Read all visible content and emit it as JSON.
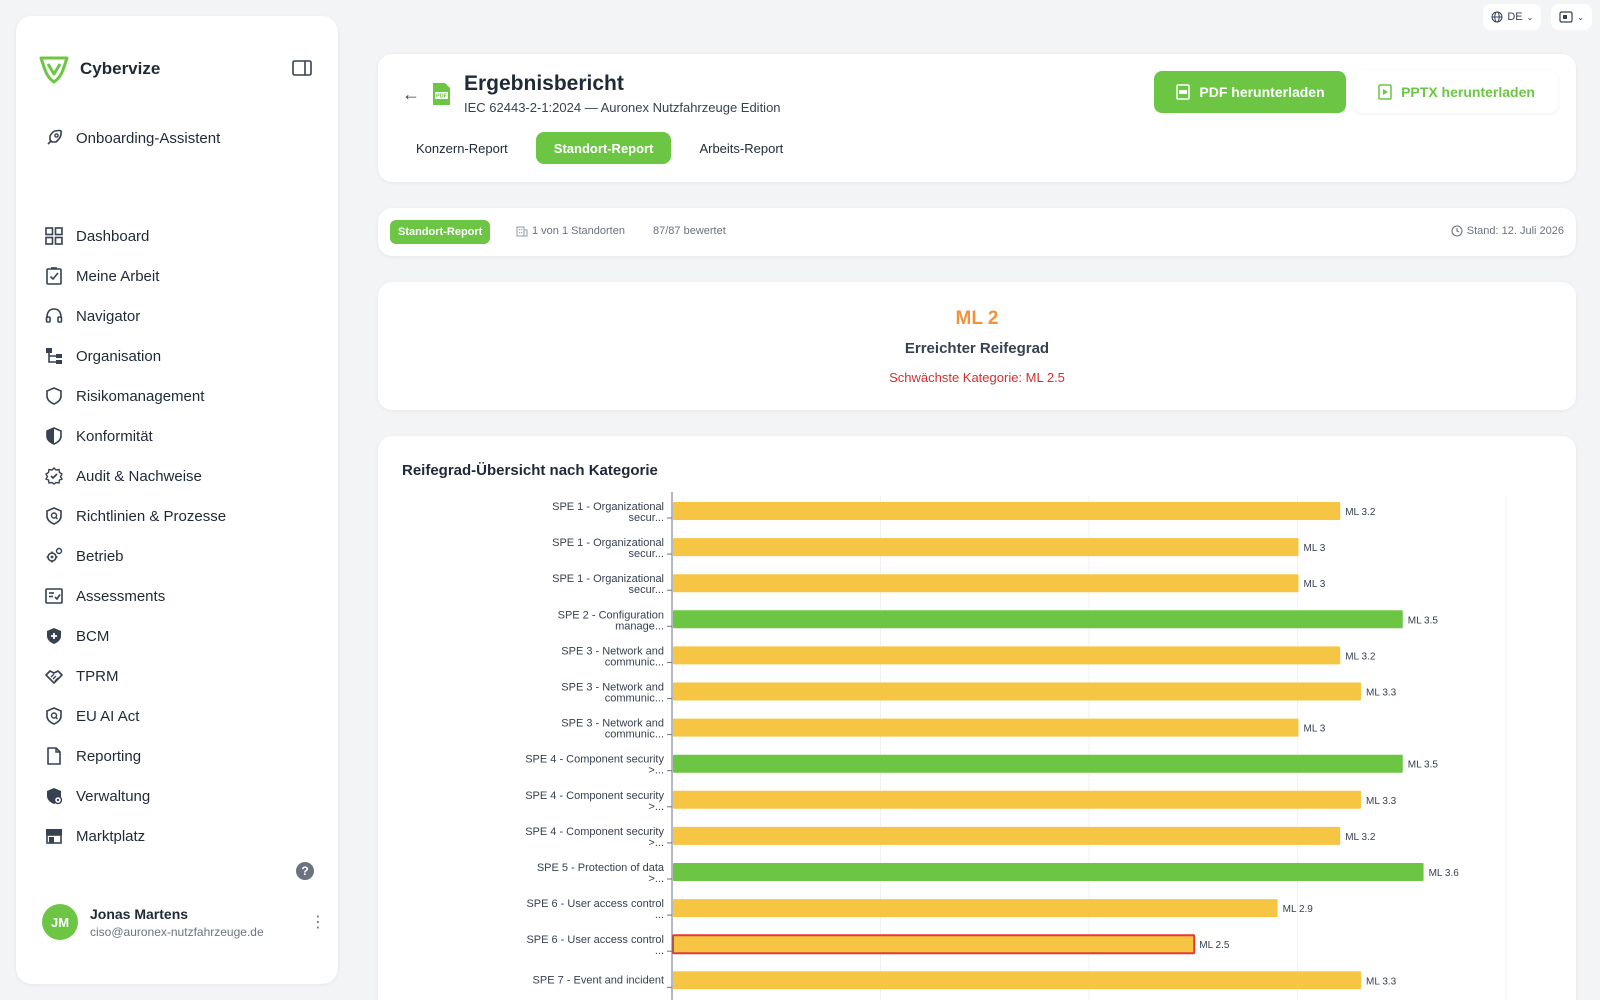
{
  "top": {
    "lang": "DE"
  },
  "sidebar": {
    "brand": "Cybervize",
    "onboarding": "Onboarding-Assistent",
    "items": [
      {
        "label": "Dashboard",
        "icon": "grid-icon"
      },
      {
        "label": "Meine Arbeit",
        "icon": "checkbox-icon"
      },
      {
        "label": "Navigator",
        "icon": "headset-icon"
      },
      {
        "label": "Organisation",
        "icon": "org-chart-icon"
      },
      {
        "label": "Risikomanagement",
        "icon": "shield-icon"
      },
      {
        "label": "Konformität",
        "icon": "shield-half-icon"
      },
      {
        "label": "Audit & Nachweise",
        "icon": "badge-check-icon"
      },
      {
        "label": "Richtlinien & Prozesse",
        "icon": "shield-search-icon"
      },
      {
        "label": "Betrieb",
        "icon": "gears-icon"
      },
      {
        "label": "Assessments",
        "icon": "checklist-icon"
      },
      {
        "label": "BCM",
        "icon": "shield-plus-icon"
      },
      {
        "label": "TPRM",
        "icon": "handshake-icon"
      },
      {
        "label": "EU AI Act",
        "icon": "shield-search-icon"
      },
      {
        "label": "Reporting",
        "icon": "document-icon"
      },
      {
        "label": "Verwaltung",
        "icon": "shield-gear-icon"
      },
      {
        "label": "Marktplatz",
        "icon": "store-icon"
      }
    ],
    "user": {
      "initials": "JM",
      "name": "Jonas Martens",
      "email": "ciso@auronex-nutzfahrzeuge.de"
    }
  },
  "header": {
    "title": "Ergebnisbericht",
    "subtitle": "IEC 62443-2-1:2024 — Auronex Nutzfahrzeuge Edition",
    "pdf_button": "PDF herunterladen",
    "pptx_button": "PPTX herunterladen",
    "tabs": [
      {
        "label": "Konzern-Report",
        "active": false
      },
      {
        "label": "Standort-Report",
        "active": true
      },
      {
        "label": "Arbeits-Report",
        "active": false
      }
    ]
  },
  "meta": {
    "badge": "Standort-Report",
    "sites": "1 von 1 Standorten",
    "rated": "87/87 bewertet",
    "date": "Stand: 12. Juli 2026"
  },
  "maturity": {
    "level": "ML 2",
    "label": "Erreichter Reifegrad",
    "weakest": "Schwächste Kategorie: ML 2.5"
  },
  "chart_title": "Reifegrad-Übersicht nach Kategorie",
  "chart_data": {
    "type": "bar",
    "orientation": "horizontal",
    "title": "Reifegrad-Übersicht nach Kategorie",
    "xlim": [
      0,
      4
    ],
    "value_prefix": "ML ",
    "colors": {
      "default": "#f5c543",
      "high": "#6cc644",
      "weakest_border": "#e53935"
    },
    "categories": [
      {
        "line1": "SPE 1 - Organizational",
        "line2": "secur...",
        "value": 3.2,
        "color": "#f5c543"
      },
      {
        "line1": "SPE 1 - Organizational",
        "line2": "secur...",
        "value": 3.0,
        "color": "#f5c543"
      },
      {
        "line1": "SPE 1 - Organizational",
        "line2": "secur...",
        "value": 3.0,
        "color": "#f5c543"
      },
      {
        "line1": "SPE 2 - Configuration",
        "line2": "manage...",
        "value": 3.5,
        "color": "#6cc644"
      },
      {
        "line1": "SPE 3 - Network and",
        "line2": "communic...",
        "value": 3.2,
        "color": "#f5c543"
      },
      {
        "line1": "SPE 3 - Network and",
        "line2": "communic...",
        "value": 3.3,
        "color": "#f5c543"
      },
      {
        "line1": "SPE 3 - Network and",
        "line2": "communic...",
        "value": 3.0,
        "color": "#f5c543"
      },
      {
        "line1": "SPE 4 - Component security",
        "line2": ">...",
        "value": 3.5,
        "color": "#6cc644"
      },
      {
        "line1": "SPE 4 - Component security",
        "line2": ">...",
        "value": 3.3,
        "color": "#f5c543"
      },
      {
        "line1": "SPE 4 - Component security",
        "line2": ">...",
        "value": 3.2,
        "color": "#f5c543"
      },
      {
        "line1": "SPE 5 - Protection of data",
        "line2": ">...",
        "value": 3.6,
        "color": "#6cc644"
      },
      {
        "line1": "SPE 6 - User access control",
        "line2": "...",
        "value": 2.9,
        "color": "#f5c543"
      },
      {
        "line1": "SPE 6 - User access control",
        "line2": "...",
        "value": 2.5,
        "color": "#f5c543",
        "weakest": true
      },
      {
        "line1": "SPE 7 - Event and incident",
        "line2": "",
        "value": 3.3,
        "color": "#f5c543"
      }
    ],
    "value_labels": [
      "ML 3.2",
      "ML 3",
      "ML 3",
      "ML 3.5",
      "ML 3.2",
      "ML 3.3",
      "ML 3",
      "ML 3.5",
      "ML 3.3",
      "ML 3.2",
      "ML 3.6",
      "ML 2.9",
      "ML 2.5",
      "ML 3.3"
    ]
  }
}
